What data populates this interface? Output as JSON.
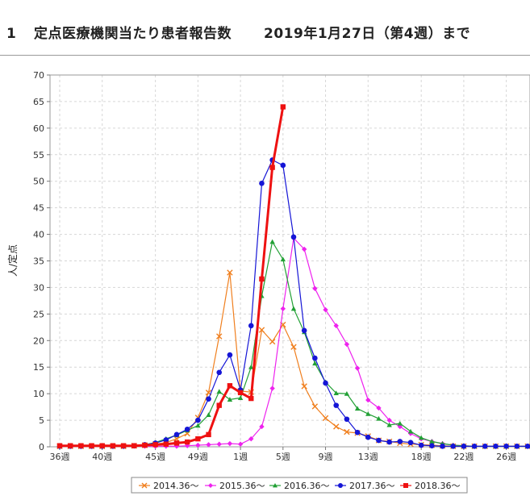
{
  "header": {
    "number": "1",
    "title": "定点医療機関当たり患者報告数",
    "as_of": "2019年1月27日（第4週）まで"
  },
  "chart_data": {
    "type": "line",
    "ylabel": "人/定点",
    "xlabel": "",
    "ylim": [
      0,
      70
    ],
    "yticks": [
      0,
      5,
      10,
      15,
      20,
      25,
      30,
      35,
      40,
      45,
      50,
      55,
      60,
      65,
      70
    ],
    "grid": true,
    "legend_position": "bottom",
    "x_index_range": [
      0,
      44
    ],
    "x_ticks": [
      {
        "i": 0,
        "label": "36週"
      },
      {
        "i": 4,
        "label": "40週"
      },
      {
        "i": 9,
        "label": "45週"
      },
      {
        "i": 13,
        "label": "49週"
      },
      {
        "i": 17,
        "label": "1週"
      },
      {
        "i": 21,
        "label": "5週"
      },
      {
        "i": 25,
        "label": "9週"
      },
      {
        "i": 29,
        "label": "13週"
      },
      {
        "i": 34,
        "label": "18週"
      },
      {
        "i": 38,
        "label": "22週"
      },
      {
        "i": 42,
        "label": "26週"
      }
    ],
    "series": [
      {
        "name": "2014.36～",
        "color": "#f07f1e",
        "marker": "cross",
        "width": 1.2,
        "values": [
          0.1,
          0.1,
          0.1,
          0.1,
          0.1,
          0.1,
          0.1,
          0.2,
          0.3,
          0.5,
          0.8,
          1.5,
          2.5,
          5.5,
          10.2,
          20.8,
          32.8,
          10.5,
          10.3,
          22,
          19.8,
          23,
          18.8,
          11.4,
          7.6,
          5.4,
          3.8,
          2.8,
          2.6,
          2,
          1.2,
          1,
          0.7,
          0.5,
          0.4,
          0.3,
          0.2,
          0.1,
          0.1,
          0.1,
          0.1,
          0.1,
          0.1,
          0.1,
          0.1
        ]
      },
      {
        "name": "2015.36～",
        "color": "#ee22ee",
        "marker": "diamond",
        "width": 1.2,
        "values": [
          0.1,
          0.1,
          0.1,
          0.1,
          0.1,
          0.1,
          0.1,
          0.1,
          0.1,
          0.1,
          0.1,
          0.1,
          0.2,
          0.3,
          0.4,
          0.5,
          0.6,
          0.5,
          1.5,
          3.8,
          11,
          26,
          39.3,
          37.2,
          29.8,
          25.8,
          22.8,
          19.3,
          14.8,
          8.8,
          7.3,
          5,
          3.8,
          2.5,
          1.5,
          1,
          0.6,
          0.3,
          0.2,
          0.1,
          0.1,
          0.1,
          0.1,
          0.1,
          0.1
        ]
      },
      {
        "name": "2016.36～",
        "color": "#22a035",
        "marker": "triangle",
        "width": 1.2,
        "values": [
          0.1,
          0.1,
          0.1,
          0.1,
          0.1,
          0.1,
          0.1,
          0.2,
          0.4,
          0.8,
          1.5,
          2.2,
          3.1,
          4,
          6,
          10.4,
          8.9,
          9.2,
          15,
          28.4,
          38.6,
          35.3,
          26,
          21.6,
          15.7,
          12.2,
          10.1,
          10,
          7.2,
          6.2,
          5.3,
          4.1,
          4.4,
          2.9,
          1.7,
          1,
          0.6,
          0.3,
          0.2,
          0.1,
          0.1,
          0.1,
          0.1,
          0.1,
          0.1
        ]
      },
      {
        "name": "2017.36～",
        "color": "#1515d6",
        "marker": "circle",
        "width": 1.2,
        "values": [
          0.1,
          0.1,
          0.1,
          0.1,
          0.1,
          0.1,
          0.1,
          0.2,
          0.4,
          0.7,
          1.3,
          2.3,
          3.3,
          5,
          9,
          14,
          17.3,
          10.7,
          22.8,
          49.6,
          54,
          53,
          39.5,
          21.9,
          16.7,
          12,
          7.8,
          5.2,
          2.7,
          1.8,
          1.2,
          0.9,
          1,
          0.8,
          0.3,
          0.2,
          0.1,
          0.1,
          0.1,
          0.1,
          0.1,
          0.1,
          0.1,
          0.1,
          0.1
        ]
      },
      {
        "name": "2018.36～",
        "color": "#ee1111",
        "marker": "square",
        "width": 3,
        "values": [
          0.2,
          0.2,
          0.2,
          0.2,
          0.2,
          0.2,
          0.2,
          0.2,
          0.3,
          0.4,
          0.5,
          0.7,
          0.9,
          1.5,
          2.3,
          7.8,
          11.5,
          10.2,
          9.1,
          31.6,
          52.6,
          64
        ]
      }
    ]
  }
}
